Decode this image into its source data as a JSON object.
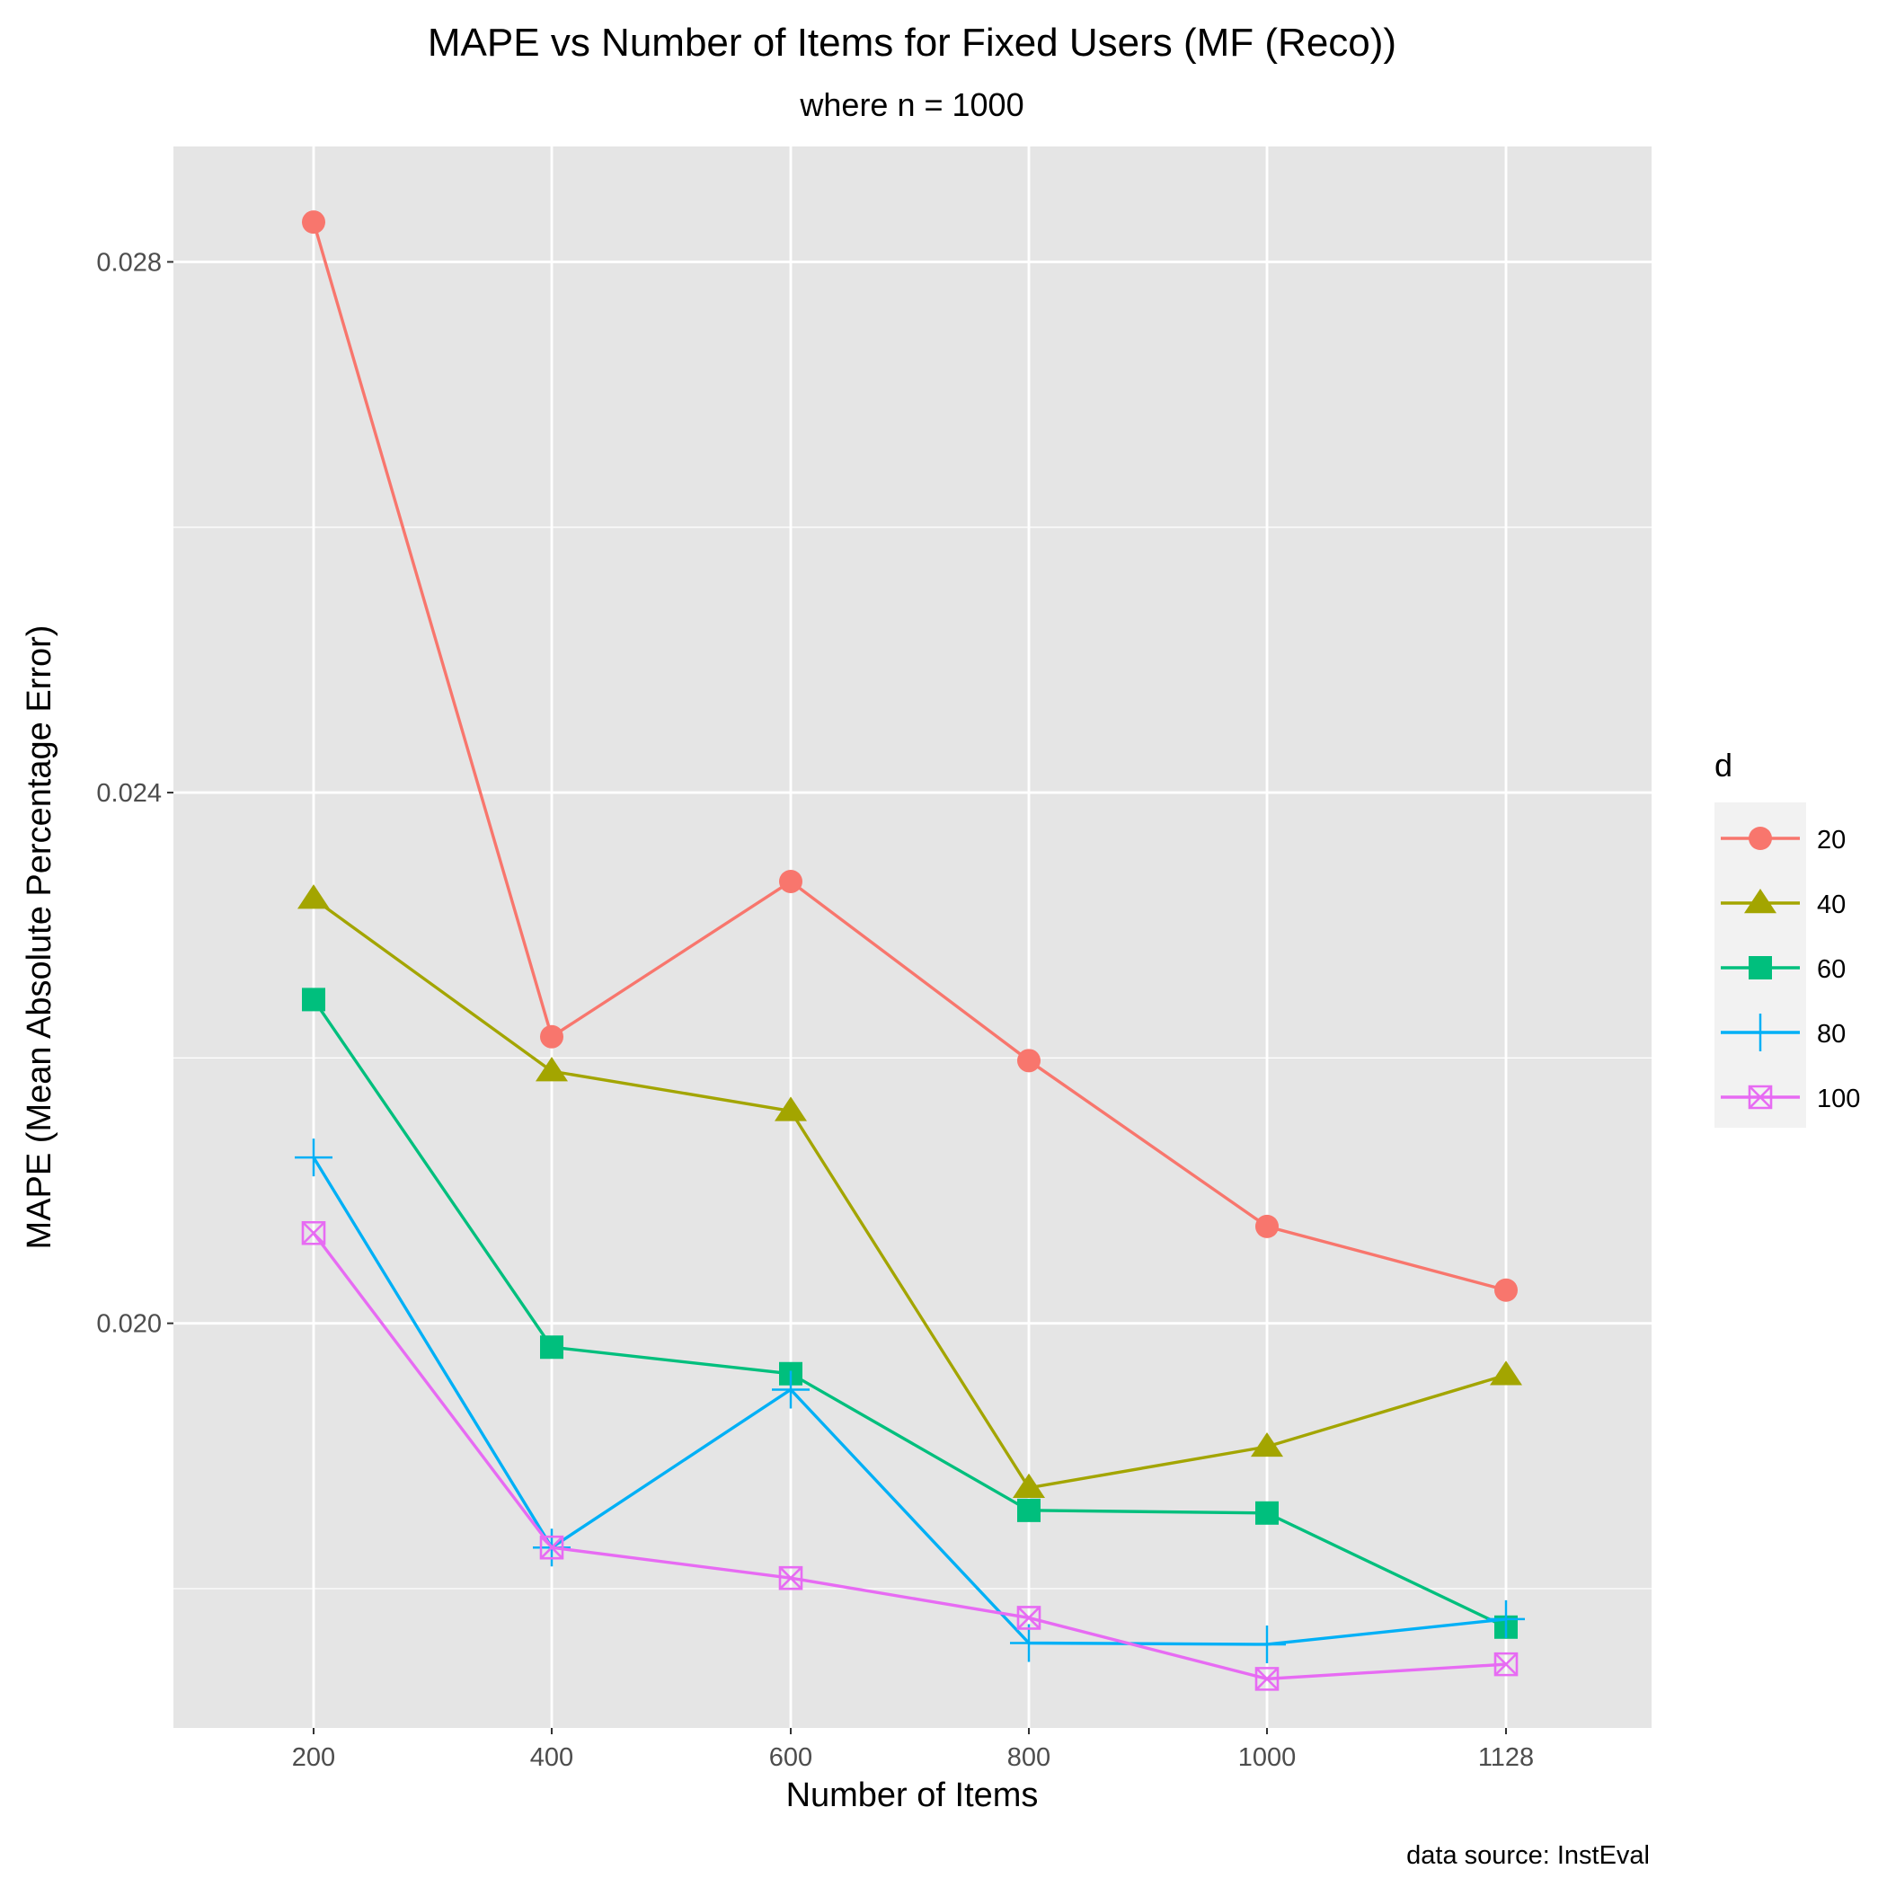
{
  "chart_data": {
    "type": "line",
    "title": "MAPE vs Number of Items for Fixed Users (MF (Reco))",
    "subtitle": "where n = 1000",
    "xlabel": "Number of Items",
    "ylabel": "MAPE (Mean Absolute Percentage Error)",
    "caption": "data source: InstEval",
    "categories": [
      "200",
      "400",
      "600",
      "800",
      "1000",
      "1128"
    ],
    "y_ticks": [
      "0.020",
      "0.024",
      "0.028"
    ],
    "y_tick_values": [
      0.02,
      0.024,
      0.028
    ],
    "ylim": [
      0.01695,
      0.02887
    ],
    "grid": true,
    "legend": {
      "title": "d",
      "position": "right"
    },
    "series": [
      {
        "name": "20",
        "color": "#F8766D",
        "shape": "circle",
        "values": [
          0.0283,
          0.02216,
          0.02333,
          0.02198,
          0.02073,
          0.02025
        ]
      },
      {
        "name": "40",
        "color": "#A3A500",
        "shape": "triangle",
        "values": [
          0.0232,
          0.0219,
          0.0216,
          0.01876,
          0.01907,
          0.01961
        ]
      },
      {
        "name": "60",
        "color": "#00BF7D",
        "shape": "square",
        "values": [
          0.02244,
          0.01982,
          0.01962,
          0.01859,
          0.01857,
          0.01771
        ]
      },
      {
        "name": "80",
        "color": "#00B0F6",
        "shape": "plus",
        "values": [
          0.02125,
          0.01831,
          0.0195,
          0.01759,
          0.01758,
          0.01777
        ]
      },
      {
        "name": "100",
        "color": "#E76BF3",
        "shape": "square-x",
        "values": [
          0.02068,
          0.01831,
          0.01808,
          0.01778,
          0.01732,
          0.01743
        ]
      }
    ]
  }
}
